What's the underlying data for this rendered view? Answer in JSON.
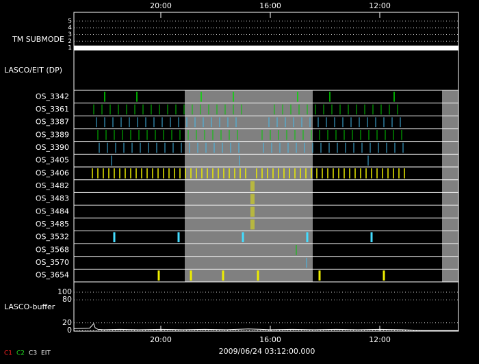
{
  "chart_data": {
    "type": "timeline",
    "xlim": [
      -3.175,
      10.875
    ],
    "xticks": [
      {
        "value": 0,
        "label": "20:00"
      },
      {
        "value": 4,
        "label": "16:00"
      },
      {
        "value": 8,
        "label": "12:00"
      }
    ],
    "x_label": "2009/06/24 03:12:00.000",
    "tm_submode": {
      "label": "TM SUBMODE",
      "ylim": [
        0.6,
        5.3
      ],
      "yticks": [
        1,
        2,
        3,
        4,
        5
      ],
      "x": [
        -3.175,
        10.875
      ],
      "values": [
        1,
        1
      ],
      "color": "#ffffff"
    },
    "section_label": "LASCO/EIT (DP)",
    "shaded": [
      [
        0.875,
        5.55
      ],
      [
        10.275,
        10.875
      ]
    ],
    "series": [
      {
        "name": "OS_3342",
        "color": "#00dd00",
        "line_width": 1.5,
        "x": [
          -2.05,
          -0.875,
          1.475,
          2.65,
          5,
          6.175,
          8.525
        ]
      },
      {
        "name": "OS_3361",
        "color": "#00cc00",
        "line_width": 1,
        "x": [
          -2.45,
          -2.15,
          -1.85,
          -1.55,
          -1.25,
          -0.95,
          -0.65,
          -0.35,
          -0.05,
          0.25,
          0.55,
          0.85,
          1.15,
          1.45,
          1.75,
          2.05,
          2.35,
          2.65,
          2.95,
          4.15,
          4.45,
          4.75,
          5.05,
          5.35,
          5.65,
          5.95,
          6.25,
          6.55,
          6.85,
          7.15,
          7.45,
          7.75,
          8.05,
          8.35,
          8.65
        ]
      },
      {
        "name": "OS_3387",
        "color": "#44bbee",
        "line_width": 1,
        "x": [
          -2.35,
          -2.05,
          -1.75,
          -1.45,
          -1.15,
          -0.85,
          -0.55,
          -0.25,
          0.05,
          0.35,
          0.65,
          0.95,
          1.25,
          1.55,
          1.85,
          2.15,
          2.45,
          2.75,
          3.95,
          4.25,
          4.55,
          4.85,
          5.15,
          5.45,
          5.75,
          6.05,
          6.35,
          6.65,
          6.95,
          7.25,
          7.55,
          7.85,
          8.15,
          8.45,
          8.75
        ]
      },
      {
        "name": "OS_3389",
        "color": "#00cc00",
        "line_width": 1,
        "x": [
          -2.3,
          -2,
          -1.7,
          -1.4,
          -1.1,
          -0.8,
          -0.5,
          -0.2,
          0.1,
          0.4,
          0.7,
          1,
          1.3,
          1.6,
          1.9,
          2.2,
          2.5,
          2.8,
          3.7,
          4,
          4.3,
          4.6,
          4.9,
          5.2,
          5.5,
          5.8,
          6.1,
          6.4,
          6.7,
          7,
          7.3,
          7.6,
          7.9,
          8.2,
          8.5,
          8.8
        ]
      },
      {
        "name": "OS_3390",
        "color": "#44bbee",
        "line_width": 1,
        "x": [
          -2.25,
          -1.95,
          -1.65,
          -1.35,
          -1.05,
          -0.75,
          -0.45,
          -0.15,
          0.15,
          0.45,
          0.75,
          1.05,
          1.35,
          1.65,
          1.95,
          2.25,
          2.55,
          2.85,
          3.75,
          4.05,
          4.35,
          4.65,
          4.95,
          5.25,
          5.55,
          5.85,
          6.15,
          6.45,
          6.75,
          7.05,
          7.35,
          7.65,
          7.95,
          8.25,
          8.55,
          8.85
        ]
      },
      {
        "name": "OS_3405",
        "color": "#44bbee",
        "line_width": 1,
        "x": [
          -1.8,
          2.875,
          7.575
        ]
      },
      {
        "name": "OS_3406",
        "color": "#eeee00",
        "line_width": 1.5,
        "x": [
          -2.5,
          -2.3,
          -2.1,
          -1.9,
          -1.7,
          -1.5,
          -1.3,
          -1.1,
          -0.9,
          -0.7,
          -0.5,
          -0.3,
          -0.1,
          0.1,
          0.3,
          0.5,
          0.7,
          0.9,
          1.1,
          1.3,
          1.5,
          1.7,
          1.9,
          2.1,
          2.3,
          2.5,
          2.7,
          2.9,
          3.1,
          3.5,
          3.7,
          3.9,
          4.1,
          4.3,
          4.5,
          4.7,
          4.9,
          5.1,
          5.3,
          5.5,
          5.7,
          5.9,
          6.1,
          6.3,
          6.5,
          6.7,
          6.9,
          7.1,
          7.3,
          7.5,
          7.7,
          7.9,
          8.1,
          8.3,
          8.5,
          8.7,
          8.9
        ]
      },
      {
        "name": "OS_3482",
        "color": "#eeee00",
        "line_width": 1,
        "x": [
          3.3,
          3.35,
          3.4
        ]
      },
      {
        "name": "OS_3483",
        "color": "#eeee00",
        "line_width": 1,
        "x": [
          3.3,
          3.35,
          3.4
        ]
      },
      {
        "name": "OS_3484",
        "color": "#eeee00",
        "line_width": 1,
        "x": [
          3.3,
          3.35,
          3.4
        ]
      },
      {
        "name": "OS_3485",
        "color": "#eeee00",
        "line_width": 1,
        "x": [
          3.3,
          3.35,
          3.4
        ]
      },
      {
        "name": "OS_3532",
        "color": "#44ddff",
        "line_width": 3,
        "x": [
          -1.7,
          0.65,
          3,
          5.35,
          7.7
        ]
      },
      {
        "name": "OS_3568",
        "color": "#00cc00",
        "line_width": 1,
        "x": [
          4.95
        ]
      },
      {
        "name": "OS_3570",
        "color": "#44bbee",
        "line_width": 1,
        "x": [
          5.325
        ]
      },
      {
        "name": "OS_3654",
        "color": "#eeee00",
        "line_width": 3,
        "x": [
          -0.075,
          1.1,
          2.275,
          3.55,
          5.8,
          8.15
        ]
      }
    ],
    "buffer": {
      "label": "LASCO-buffer",
      "ylim": [
        0,
        100
      ],
      "yticks": [
        0,
        20,
        80,
        100
      ],
      "color": "#ffffff",
      "x": [
        -3.175,
        -2.6,
        -2.45,
        -2.4,
        -2.3,
        -2.1,
        -1.5,
        -0.8,
        0,
        0.8,
        1.6,
        2.4,
        3.2,
        4,
        4.8,
        5.6,
        6.4,
        7.2,
        8,
        8.8,
        9.6,
        10.875
      ],
      "values": [
        5,
        6,
        18,
        7,
        3,
        2,
        3,
        2,
        3,
        2,
        3,
        2,
        4,
        2,
        3,
        2,
        3,
        2,
        3,
        2,
        0,
        0
      ]
    },
    "legend": [
      {
        "name": "C1",
        "color": "#ff2222"
      },
      {
        "name": "C2",
        "color": "#22dd22"
      },
      {
        "name": "C3",
        "color": "#ffffff"
      },
      {
        "name": "EIT",
        "color": "#ffffff"
      }
    ]
  }
}
